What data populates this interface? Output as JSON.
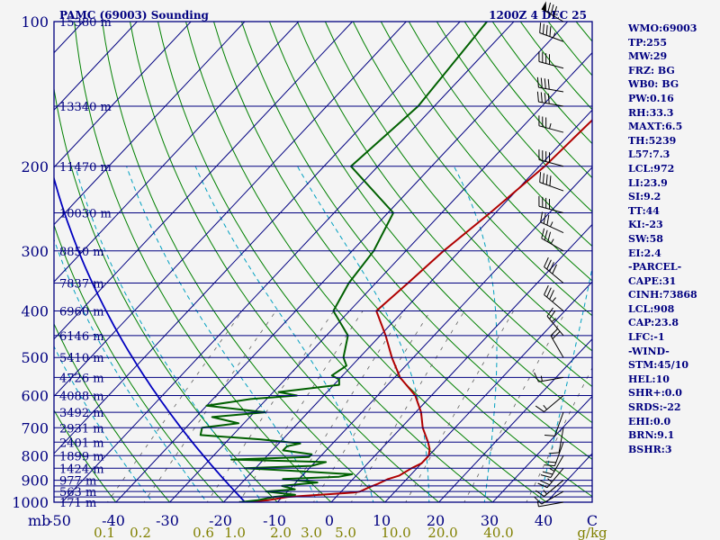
{
  "header": {
    "station": "PAMC (69003) Sounding",
    "time": "1200Z  4 DEC 25"
  },
  "indices": [
    "WMO:69003",
    "TP:255",
    "MW:29",
    "FRZ: BG",
    "WB0: BG",
    "PW:0.16",
    "RH:33.3",
    "MAXT:6.5",
    "TH:5239",
    "L57:7.3",
    "LCL:972",
    "LI:23.9",
    "SI:9.2",
    "TT:44",
    "KI:-23",
    "SW:58",
    "EI:2.4",
    "-PARCEL-",
    "CAPE:31",
    "CINH:73868",
    "LCL:908",
    "CAP:23.8",
    "LFC:-1",
    "-WIND-",
    "STM:45/10",
    "HEL:10",
    "SHR+:0.0",
    "SRDS:-22",
    "EHI:0.0",
    "BRN:9.1",
    "BSHR:3"
  ],
  "chart_data": {
    "type": "skew-t log-p",
    "title": "PAMC (69003) Sounding",
    "pressure_axis": {
      "label_units": "mb",
      "ticks": [
        100,
        200,
        300,
        400,
        500,
        600,
        700,
        800,
        900,
        1000
      ],
      "range": [
        1000,
        100
      ],
      "scale": "log",
      "isobars": [
        100,
        150,
        200,
        250,
        300,
        350,
        400,
        450,
        500,
        550,
        600,
        650,
        700,
        750,
        800,
        850,
        900,
        925,
        950,
        975,
        1000
      ]
    },
    "temperature_axis": {
      "units": "C",
      "ticks": [
        "-50",
        "-40",
        "-30",
        "-20",
        "-10",
        "0",
        "10",
        "20",
        "30",
        "40",
        "C"
      ],
      "range": [
        -50,
        50
      ]
    },
    "mixing_ratio_axis": {
      "units": "g/kg",
      "ticks": [
        "0.1",
        "0.2",
        "0.6",
        "1.0",
        "2.0",
        "3.0",
        "5.0",
        "10.0",
        "20.0",
        "40.0",
        "g/kg"
      ]
    },
    "height_labels": [
      {
        "p": 100,
        "h": "15380 m"
      },
      {
        "p": 150,
        "h": "13340 m"
      },
      {
        "p": 200,
        "h": "11470 m"
      },
      {
        "p": 250,
        "h": "10030 m"
      },
      {
        "p": 300,
        "h": "8850 m"
      },
      {
        "p": 350,
        "h": "7837 m"
      },
      {
        "p": 400,
        "h": "6960 m"
      },
      {
        "p": 450,
        "h": "6146 m"
      },
      {
        "p": 500,
        "h": "5410 m"
      },
      {
        "p": 550,
        "h": "4726 m"
      },
      {
        "p": 600,
        "h": "4088 m"
      },
      {
        "p": 650,
        "h": "3492 m"
      },
      {
        "p": 700,
        "h": "2931 m"
      },
      {
        "p": 750,
        "h": "2401 m"
      },
      {
        "p": 800,
        "h": "1899 m"
      },
      {
        "p": 850,
        "h": "1424 m"
      },
      {
        "p": 900,
        "h": "977 m"
      },
      {
        "p": 950,
        "h": "563 m"
      },
      {
        "p": 1000,
        "h": "171 m"
      }
    ],
    "series": [
      {
        "name": "temperature",
        "color": "#b00000",
        "points": [
          [
            1000,
            -16.5
          ],
          [
            990,
            -12
          ],
          [
            975,
            -9
          ],
          [
            955,
            2.5
          ],
          [
            950,
            3.5
          ],
          [
            930,
            4.5
          ],
          [
            915,
            5.5
          ],
          [
            895,
            6.5
          ],
          [
            880,
            8
          ],
          [
            850,
            9
          ],
          [
            830,
            10
          ],
          [
            800,
            10
          ],
          [
            775,
            9
          ],
          [
            750,
            7.5
          ],
          [
            700,
            4
          ],
          [
            650,
            1
          ],
          [
            600,
            -3
          ],
          [
            550,
            -9
          ],
          [
            500,
            -14
          ],
          [
            450,
            -19
          ],
          [
            400,
            -25
          ],
          [
            350,
            -24
          ],
          [
            300,
            -23
          ],
          [
            250,
            -21
          ],
          [
            200,
            -19
          ],
          [
            150,
            -18
          ],
          [
            100,
            -22
          ]
        ]
      },
      {
        "name": "dewpoint",
        "color": "#006000",
        "points": [
          [
            1000,
            -17
          ],
          [
            990,
            -14
          ],
          [
            975,
            -11.5
          ],
          [
            965,
            -8
          ],
          [
            950,
            -14
          ],
          [
            940,
            -9
          ],
          [
            925,
            -12
          ],
          [
            910,
            -6
          ],
          [
            895,
            -13
          ],
          [
            885,
            -3
          ],
          [
            875,
            -1
          ],
          [
            860,
            -13
          ],
          [
            850,
            -22
          ],
          [
            840,
            -10
          ],
          [
            825,
            -8
          ],
          [
            815,
            -26
          ],
          [
            805,
            -12
          ],
          [
            795,
            -12
          ],
          [
            780,
            -18
          ],
          [
            765,
            -18
          ],
          [
            755,
            -16
          ],
          [
            740,
            -24
          ],
          [
            725,
            -36
          ],
          [
            700,
            -37
          ],
          [
            685,
            -31
          ],
          [
            665,
            -37
          ],
          [
            650,
            -28
          ],
          [
            630,
            -40
          ],
          [
            610,
            -33
          ],
          [
            600,
            -25
          ],
          [
            590,
            -29
          ],
          [
            570,
            -19
          ],
          [
            555,
            -20
          ],
          [
            545,
            -22
          ],
          [
            520,
            -21
          ],
          [
            500,
            -23
          ],
          [
            450,
            -26
          ],
          [
            400,
            -33
          ],
          [
            350,
            -35
          ],
          [
            300,
            -36
          ],
          [
            250,
            -39
          ],
          [
            200,
            -55
          ],
          [
            150,
            -53
          ],
          [
            100,
            -55
          ]
        ]
      }
    ],
    "wind_barbs": [
      {
        "p": 100,
        "dir": 300,
        "spd": 80
      },
      {
        "p": 110,
        "dir": 290,
        "spd": 45
      },
      {
        "p": 125,
        "dir": 285,
        "spd": 40
      },
      {
        "p": 140,
        "dir": 280,
        "spd": 40
      },
      {
        "p": 150,
        "dir": 280,
        "spd": 40
      },
      {
        "p": 170,
        "dir": 285,
        "spd": 35
      },
      {
        "p": 200,
        "dir": 285,
        "spd": 40
      },
      {
        "p": 225,
        "dir": 290,
        "spd": 40
      },
      {
        "p": 250,
        "dir": 285,
        "spd": 40
      },
      {
        "p": 275,
        "dir": 295,
        "spd": 35
      },
      {
        "p": 300,
        "dir": 300,
        "spd": 35
      },
      {
        "p": 350,
        "dir": 310,
        "spd": 40
      },
      {
        "p": 400,
        "dir": 310,
        "spd": 35
      },
      {
        "p": 450,
        "dir": 320,
        "spd": 25
      },
      {
        "p": 500,
        "dir": 330,
        "spd": 20
      },
      {
        "p": 550,
        "dir": 260,
        "spd": 15
      },
      {
        "p": 600,
        "dir": 230,
        "spd": 15
      },
      {
        "p": 650,
        "dir": 200,
        "spd": 10
      },
      {
        "p": 700,
        "dir": 190,
        "spd": 10
      },
      {
        "p": 750,
        "dir": 200,
        "spd": 20
      },
      {
        "p": 800,
        "dir": 210,
        "spd": 25
      },
      {
        "p": 850,
        "dir": 220,
        "spd": 25
      },
      {
        "p": 900,
        "dir": 230,
        "spd": 15
      },
      {
        "p": 950,
        "dir": 240,
        "spd": 10
      },
      {
        "p": 1000,
        "dir": 260,
        "spd": 5
      }
    ],
    "colors": {
      "isobars": "#000080",
      "isotherms": "#000080",
      "dry_adiabats": "#008000",
      "moist_adiabats": "#00a0c0",
      "mixing_ratio": "#606060",
      "parcel": "#0000c0"
    }
  }
}
